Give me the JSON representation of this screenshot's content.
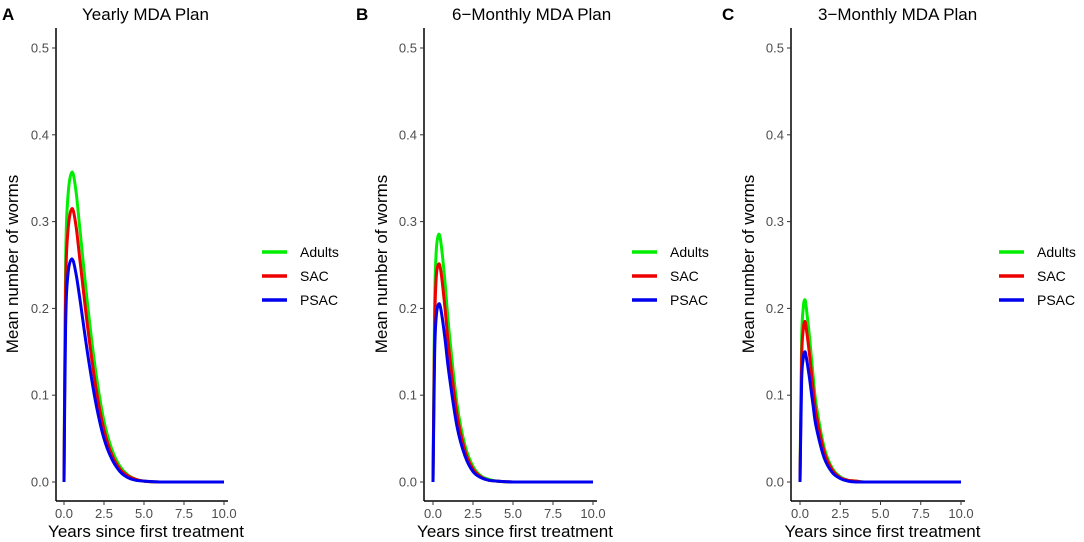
{
  "chart_data": [
    {
      "type": "line",
      "panel": "A",
      "title": "Yearly MDA Plan",
      "xlabel": "Years since first treatment",
      "ylabel": "Mean number of worms",
      "xlim": [
        0,
        10
      ],
      "ylim": [
        0,
        0.5
      ],
      "xticks": [
        "0.0",
        "2.5",
        "5.0",
        "7.5",
        "10.0"
      ],
      "yticks": [
        "0.0",
        "0.1",
        "0.2",
        "0.3",
        "0.4",
        "0.5"
      ],
      "grid": false,
      "legend_position": "right",
      "x": [
        0,
        0.1,
        0.25,
        0.5,
        0.75,
        1.0,
        1.5,
        2.0,
        2.5,
        3.0,
        3.5,
        4.0,
        4.5,
        5.0,
        6.0,
        7.5,
        10.0
      ],
      "series": [
        {
          "name": "Adults",
          "color": "#00ee00",
          "values": [
            0,
            0.25,
            0.33,
            0.357,
            0.335,
            0.29,
            0.2,
            0.125,
            0.07,
            0.037,
            0.018,
            0.008,
            0.003,
            0.001,
            0,
            0,
            0
          ]
        },
        {
          "name": "SAC",
          "color": "#ee0000",
          "values": [
            0,
            0.22,
            0.29,
            0.315,
            0.295,
            0.255,
            0.175,
            0.108,
            0.06,
            0.031,
            0.015,
            0.007,
            0.003,
            0.001,
            0,
            0,
            0
          ]
        },
        {
          "name": "PSAC",
          "color": "#0000ee",
          "values": [
            0,
            0.18,
            0.24,
            0.257,
            0.24,
            0.21,
            0.145,
            0.09,
            0.05,
            0.026,
            0.012,
            0.005,
            0.002,
            0.001,
            0,
            0,
            0
          ]
        }
      ]
    },
    {
      "type": "line",
      "panel": "B",
      "title": "6−Monthly MDA Plan",
      "xlabel": "Years since first treatment",
      "ylabel": "Mean number of worms",
      "xlim": [
        0,
        10
      ],
      "ylim": [
        0,
        0.5
      ],
      "xticks": [
        "0.0",
        "2.5",
        "5.0",
        "7.5",
        "10.0"
      ],
      "yticks": [
        "0.0",
        "0.1",
        "0.2",
        "0.3",
        "0.4",
        "0.5"
      ],
      "grid": false,
      "legend_position": "right",
      "x": [
        0,
        0.1,
        0.2,
        0.35,
        0.5,
        0.75,
        1.0,
        1.5,
        2.0,
        2.5,
        3.0,
        3.5,
        4.0,
        5.0,
        6.0,
        7.5,
        10.0
      ],
      "series": [
        {
          "name": "Adults",
          "color": "#00ee00",
          "values": [
            0,
            0.2,
            0.265,
            0.285,
            0.275,
            0.23,
            0.175,
            0.09,
            0.042,
            0.018,
            0.007,
            0.003,
            0.001,
            0,
            0,
            0,
            0
          ]
        },
        {
          "name": "SAC",
          "color": "#ee0000",
          "values": [
            0,
            0.175,
            0.235,
            0.251,
            0.242,
            0.2,
            0.152,
            0.078,
            0.036,
            0.015,
            0.006,
            0.002,
            0.001,
            0,
            0,
            0,
            0
          ]
        },
        {
          "name": "PSAC",
          "color": "#0000ee",
          "values": [
            0,
            0.145,
            0.19,
            0.205,
            0.198,
            0.165,
            0.125,
            0.064,
            0.03,
            0.012,
            0.005,
            0.002,
            0.001,
            0,
            0,
            0,
            0
          ]
        }
      ]
    },
    {
      "type": "line",
      "panel": "C",
      "title": "3−Monthly MDA Plan",
      "xlabel": "Years since first treatment",
      "ylabel": "Mean number of worms",
      "xlim": [
        0,
        10
      ],
      "ylim": [
        0,
        0.5
      ],
      "xticks": [
        "0.0",
        "2.5",
        "5.0",
        "7.5",
        "10.0"
      ],
      "yticks": [
        "0.0",
        "0.1",
        "0.2",
        "0.3",
        "0.4",
        "0.5"
      ],
      "grid": false,
      "legend_position": "right",
      "x": [
        0,
        0.1,
        0.2,
        0.3,
        0.4,
        0.6,
        0.8,
        1.0,
        1.5,
        2.0,
        2.5,
        3.0,
        3.5,
        4.0,
        5.0,
        7.5,
        10.0
      ],
      "series": [
        {
          "name": "Adults",
          "color": "#00ee00",
          "values": [
            0,
            0.16,
            0.2,
            0.21,
            0.2,
            0.165,
            0.125,
            0.09,
            0.04,
            0.016,
            0.006,
            0.002,
            0.001,
            0,
            0,
            0,
            0
          ]
        },
        {
          "name": "SAC",
          "color": "#ee0000",
          "values": [
            0,
            0.14,
            0.175,
            0.185,
            0.176,
            0.145,
            0.11,
            0.079,
            0.035,
            0.014,
            0.005,
            0.002,
            0.001,
            0,
            0,
            0,
            0
          ]
        },
        {
          "name": "PSAC",
          "color": "#0000ee",
          "values": [
            0,
            0.115,
            0.142,
            0.15,
            0.143,
            0.118,
            0.09,
            0.064,
            0.028,
            0.011,
            0.004,
            0.001,
            0,
            0,
            0,
            0,
            0
          ]
        }
      ]
    }
  ]
}
